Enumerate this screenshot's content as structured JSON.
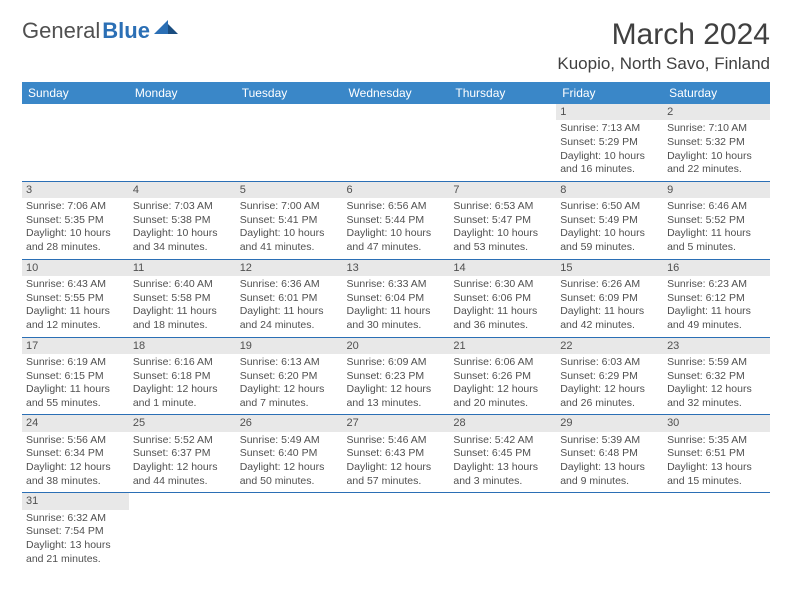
{
  "logo": {
    "text1": "General",
    "text2": "Blue"
  },
  "title": "March 2024",
  "location": "Kuopio, North Savo, Finland",
  "headers": [
    "Sunday",
    "Monday",
    "Tuesday",
    "Wednesday",
    "Thursday",
    "Friday",
    "Saturday"
  ],
  "colors": {
    "headerBg": "#3a87c8",
    "headerText": "#ffffff",
    "border": "#2b6fb5",
    "dayBg": "#e8e8e8",
    "text": "#505050"
  },
  "weeks": [
    [
      null,
      null,
      null,
      null,
      null,
      {
        "n": "1",
        "sr": "Sunrise: 7:13 AM",
        "ss": "Sunset: 5:29 PM",
        "d1": "Daylight: 10 hours",
        "d2": "and 16 minutes."
      },
      {
        "n": "2",
        "sr": "Sunrise: 7:10 AM",
        "ss": "Sunset: 5:32 PM",
        "d1": "Daylight: 10 hours",
        "d2": "and 22 minutes."
      }
    ],
    [
      {
        "n": "3",
        "sr": "Sunrise: 7:06 AM",
        "ss": "Sunset: 5:35 PM",
        "d1": "Daylight: 10 hours",
        "d2": "and 28 minutes."
      },
      {
        "n": "4",
        "sr": "Sunrise: 7:03 AM",
        "ss": "Sunset: 5:38 PM",
        "d1": "Daylight: 10 hours",
        "d2": "and 34 minutes."
      },
      {
        "n": "5",
        "sr": "Sunrise: 7:00 AM",
        "ss": "Sunset: 5:41 PM",
        "d1": "Daylight: 10 hours",
        "d2": "and 41 minutes."
      },
      {
        "n": "6",
        "sr": "Sunrise: 6:56 AM",
        "ss": "Sunset: 5:44 PM",
        "d1": "Daylight: 10 hours",
        "d2": "and 47 minutes."
      },
      {
        "n": "7",
        "sr": "Sunrise: 6:53 AM",
        "ss": "Sunset: 5:47 PM",
        "d1": "Daylight: 10 hours",
        "d2": "and 53 minutes."
      },
      {
        "n": "8",
        "sr": "Sunrise: 6:50 AM",
        "ss": "Sunset: 5:49 PM",
        "d1": "Daylight: 10 hours",
        "d2": "and 59 minutes."
      },
      {
        "n": "9",
        "sr": "Sunrise: 6:46 AM",
        "ss": "Sunset: 5:52 PM",
        "d1": "Daylight: 11 hours",
        "d2": "and 5 minutes."
      }
    ],
    [
      {
        "n": "10",
        "sr": "Sunrise: 6:43 AM",
        "ss": "Sunset: 5:55 PM",
        "d1": "Daylight: 11 hours",
        "d2": "and 12 minutes."
      },
      {
        "n": "11",
        "sr": "Sunrise: 6:40 AM",
        "ss": "Sunset: 5:58 PM",
        "d1": "Daylight: 11 hours",
        "d2": "and 18 minutes."
      },
      {
        "n": "12",
        "sr": "Sunrise: 6:36 AM",
        "ss": "Sunset: 6:01 PM",
        "d1": "Daylight: 11 hours",
        "d2": "and 24 minutes."
      },
      {
        "n": "13",
        "sr": "Sunrise: 6:33 AM",
        "ss": "Sunset: 6:04 PM",
        "d1": "Daylight: 11 hours",
        "d2": "and 30 minutes."
      },
      {
        "n": "14",
        "sr": "Sunrise: 6:30 AM",
        "ss": "Sunset: 6:06 PM",
        "d1": "Daylight: 11 hours",
        "d2": "and 36 minutes."
      },
      {
        "n": "15",
        "sr": "Sunrise: 6:26 AM",
        "ss": "Sunset: 6:09 PM",
        "d1": "Daylight: 11 hours",
        "d2": "and 42 minutes."
      },
      {
        "n": "16",
        "sr": "Sunrise: 6:23 AM",
        "ss": "Sunset: 6:12 PM",
        "d1": "Daylight: 11 hours",
        "d2": "and 49 minutes."
      }
    ],
    [
      {
        "n": "17",
        "sr": "Sunrise: 6:19 AM",
        "ss": "Sunset: 6:15 PM",
        "d1": "Daylight: 11 hours",
        "d2": "and 55 minutes."
      },
      {
        "n": "18",
        "sr": "Sunrise: 6:16 AM",
        "ss": "Sunset: 6:18 PM",
        "d1": "Daylight: 12 hours",
        "d2": "and 1 minute."
      },
      {
        "n": "19",
        "sr": "Sunrise: 6:13 AM",
        "ss": "Sunset: 6:20 PM",
        "d1": "Daylight: 12 hours",
        "d2": "and 7 minutes."
      },
      {
        "n": "20",
        "sr": "Sunrise: 6:09 AM",
        "ss": "Sunset: 6:23 PM",
        "d1": "Daylight: 12 hours",
        "d2": "and 13 minutes."
      },
      {
        "n": "21",
        "sr": "Sunrise: 6:06 AM",
        "ss": "Sunset: 6:26 PM",
        "d1": "Daylight: 12 hours",
        "d2": "and 20 minutes."
      },
      {
        "n": "22",
        "sr": "Sunrise: 6:03 AM",
        "ss": "Sunset: 6:29 PM",
        "d1": "Daylight: 12 hours",
        "d2": "and 26 minutes."
      },
      {
        "n": "23",
        "sr": "Sunrise: 5:59 AM",
        "ss": "Sunset: 6:32 PM",
        "d1": "Daylight: 12 hours",
        "d2": "and 32 minutes."
      }
    ],
    [
      {
        "n": "24",
        "sr": "Sunrise: 5:56 AM",
        "ss": "Sunset: 6:34 PM",
        "d1": "Daylight: 12 hours",
        "d2": "and 38 minutes."
      },
      {
        "n": "25",
        "sr": "Sunrise: 5:52 AM",
        "ss": "Sunset: 6:37 PM",
        "d1": "Daylight: 12 hours",
        "d2": "and 44 minutes."
      },
      {
        "n": "26",
        "sr": "Sunrise: 5:49 AM",
        "ss": "Sunset: 6:40 PM",
        "d1": "Daylight: 12 hours",
        "d2": "and 50 minutes."
      },
      {
        "n": "27",
        "sr": "Sunrise: 5:46 AM",
        "ss": "Sunset: 6:43 PM",
        "d1": "Daylight: 12 hours",
        "d2": "and 57 minutes."
      },
      {
        "n": "28",
        "sr": "Sunrise: 5:42 AM",
        "ss": "Sunset: 6:45 PM",
        "d1": "Daylight: 13 hours",
        "d2": "and 3 minutes."
      },
      {
        "n": "29",
        "sr": "Sunrise: 5:39 AM",
        "ss": "Sunset: 6:48 PM",
        "d1": "Daylight: 13 hours",
        "d2": "and 9 minutes."
      },
      {
        "n": "30",
        "sr": "Sunrise: 5:35 AM",
        "ss": "Sunset: 6:51 PM",
        "d1": "Daylight: 13 hours",
        "d2": "and 15 minutes."
      }
    ],
    [
      {
        "n": "31",
        "sr": "Sunrise: 6:32 AM",
        "ss": "Sunset: 7:54 PM",
        "d1": "Daylight: 13 hours",
        "d2": "and 21 minutes."
      },
      null,
      null,
      null,
      null,
      null,
      null
    ]
  ]
}
